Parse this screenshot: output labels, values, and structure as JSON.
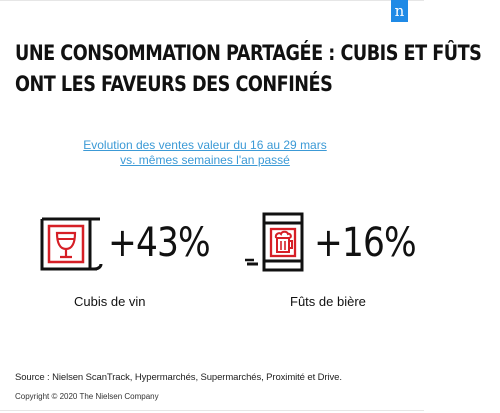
{
  "brand": {
    "logo_letter": "n",
    "accent_color": "#1f8ae6"
  },
  "headline": {
    "line1": "UNE CONSOMMATION PARTAGÉE : CUBIS ET FÛTS",
    "line2": "ONT LES FAVEURS DES CONFINÉS"
  },
  "subtitle": {
    "line1": "Evolution des ventes valeur du 16 au 29 mars",
    "line2": "vs. mêmes semaines l'an passé",
    "color": "#3c9ad6"
  },
  "items": [
    {
      "icon": "wine-box-icon",
      "value": "+43%",
      "label": "Cubis de vin"
    },
    {
      "icon": "beer-keg-icon",
      "value": "+16%",
      "label": "Fûts de bière"
    }
  ],
  "accent_red": "#d61f26",
  "footer": {
    "source": "Source : Nielsen ScanTrack, Hypermarchés, Supermarchés, Proximité et Drive.",
    "copyright": "Copyright © 2020 The Nielsen Company"
  }
}
